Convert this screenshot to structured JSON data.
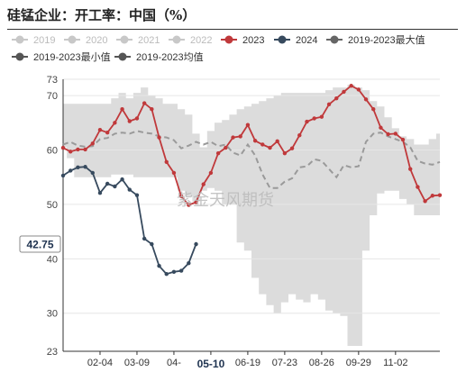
{
  "title": "硅锰企业：开工率：中国（%）",
  "watermark": "紫金天风期货",
  "colors": {
    "y2023": "#c0393b",
    "y2024": "#374a5e",
    "inactive": "#c8c8c8",
    "band": "#dcdcdc",
    "avg": "#9a9a9a",
    "axis": "#333333"
  },
  "chart_data": {
    "type": "line",
    "xlabel": "",
    "ylabel": "",
    "ylim": [
      23,
      73
    ],
    "y_ticks": [
      23,
      30,
      40,
      50,
      60,
      70,
      73
    ],
    "x_ticks": [
      "02-04",
      "03-09",
      "04-",
      "05-10",
      "06-19",
      "07-23",
      "08-26",
      "09-29",
      "11-02"
    ],
    "x_tick_weeks": [
      5,
      10,
      15,
      20,
      25,
      30,
      35,
      40,
      45
    ],
    "current_tick": "05-10",
    "current_value_label": "42.75",
    "week_count": 52,
    "legend": [
      {
        "name": "2019",
        "active": false
      },
      {
        "name": "2020",
        "active": false
      },
      {
        "name": "2021",
        "active": false
      },
      {
        "name": "2022",
        "active": false
      },
      {
        "name": "2023",
        "active": true
      },
      {
        "name": "2024",
        "active": true
      },
      {
        "name": "2019-2023最大值",
        "active": true
      },
      {
        "name": "2019-2023最小值",
        "active": true
      },
      {
        "name": "2019-2023均值",
        "active": true
      }
    ],
    "series": [
      {
        "name": "2023",
        "values": [
          60.4,
          59.7,
          60.1,
          60.1,
          61.2,
          63.7,
          63.2,
          65.0,
          67.5,
          65.3,
          65.8,
          68.6,
          67.5,
          62.3,
          57.8,
          55.8,
          51.5,
          49.9,
          50.4,
          53.7,
          55.8,
          59.4,
          60.4,
          62.3,
          62.5,
          64.6,
          61.7,
          61.0,
          60.4,
          61.6,
          59.4,
          60.3,
          62.7,
          65.2,
          65.8,
          66.1,
          68.4,
          69.5,
          70.7,
          71.8,
          71.1,
          69.3,
          67.5,
          64.1,
          62.9,
          63.0,
          61.9,
          56.5,
          53.2,
          50.6,
          51.6,
          51.7
        ]
      },
      {
        "name": "2024",
        "values": [
          55.3,
          56.2,
          56.8,
          56.9,
          55.8,
          52.1,
          53.8,
          53.3,
          54.6,
          52.7,
          51.7,
          43.7,
          42.7,
          38.7,
          37.2,
          37.6,
          37.8,
          39.2,
          42.7
        ]
      },
      {
        "name": "2019-2023最大值",
        "values": [
          68.5,
          68.5,
          68.5,
          68.5,
          68.5,
          68.5,
          68.5,
          69.5,
          70.5,
          69.5,
          70.5,
          71.5,
          70.0,
          69.5,
          68.5,
          68.5,
          67.5,
          66.5,
          63.0,
          60.5,
          63.5,
          65.0,
          65.5,
          66.5,
          67.5,
          68.0,
          68.5,
          69.0,
          69.5,
          70.0,
          70.5,
          70.5,
          70.5,
          70.5,
          70.5,
          70.5,
          71.0,
          71.5,
          71.5,
          72.0,
          71.5,
          71.0,
          69.0,
          68.0,
          66.0,
          64.0,
          62.5,
          62.0,
          61.0,
          61.0,
          62.0,
          63.0
        ]
      },
      {
        "name": "2019-2023最小值",
        "values": [
          60.5,
          58.5,
          55.0,
          55.0,
          55.0,
          55.0,
          55.0,
          55.5,
          55.5,
          55.5,
          55.0,
          55.0,
          55.0,
          55.0,
          55.0,
          55.0,
          52.5,
          51.5,
          50.5,
          52.5,
          53.0,
          52.5,
          50.0,
          50.0,
          43.0,
          41.5,
          36.5,
          33.5,
          31.5,
          30.0,
          32.0,
          33.5,
          32.5,
          32.0,
          33.5,
          32.5,
          30.5,
          30.0,
          29.5,
          24.0,
          24.0,
          41.5,
          48.0,
          52.0,
          52.5,
          52.5,
          51.0,
          50.0,
          48.0,
          48.0,
          48.0,
          48.0
        ]
      },
      {
        "name": "2019-2023均值",
        "values": [
          61.0,
          61.5,
          60.8,
          60.6,
          60.7,
          62.0,
          62.2,
          63.0,
          63.2,
          63.0,
          63.5,
          63.2,
          63.0,
          62.5,
          62.3,
          61.8,
          60.3,
          60.8,
          61.5,
          61.0,
          61.5,
          60.7,
          61.0,
          59.5,
          59.0,
          61.0,
          59.0,
          55.5,
          53.0,
          53.0,
          54.2,
          54.8,
          56.8,
          57.0,
          58.3,
          58.0,
          56.5,
          55.0,
          57.2,
          56.8,
          57.0,
          61.5,
          63.0,
          63.2,
          62.5,
          62.0,
          61.5,
          60.5,
          58.0,
          57.5,
          57.3,
          57.8
        ]
      }
    ]
  }
}
